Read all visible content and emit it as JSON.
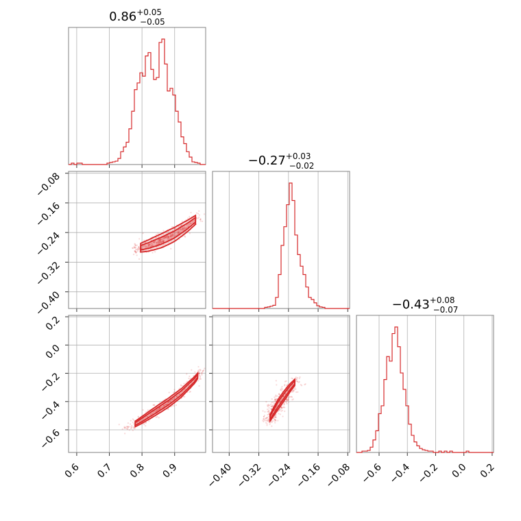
{
  "chart_data": {
    "type": "corner",
    "color": "#d62728",
    "parameters": [
      {
        "median": "0.86",
        "plus": "+0.05",
        "minus": "−0.05",
        "range": [
          0.575,
          0.995
        ],
        "ticks": [
          0.6,
          0.7,
          0.8,
          0.9
        ],
        "tick_labels": [
          "0.6",
          "0.7",
          "0.8",
          "0.9"
        ]
      },
      {
        "median": "−0.27",
        "plus": "+0.03",
        "minus": "−0.02",
        "range": [
          -0.445,
          -0.075
        ],
        "ticks": [
          -0.4,
          -0.32,
          -0.24,
          -0.16,
          -0.08
        ],
        "tick_labels": [
          "−0.40",
          "−0.32",
          "−0.24",
          "−0.16",
          "−0.08"
        ]
      },
      {
        "median": "−0.43",
        "plus": "+0.08",
        "minus": "−0.07",
        "range": [
          -0.76,
          0.21
        ],
        "ticks": [
          -0.6,
          -0.4,
          -0.2,
          0.0,
          0.2
        ],
        "tick_labels": [
          "−0.6",
          "−0.4",
          "−0.2",
          "0.0",
          "0.2"
        ]
      }
    ],
    "histograms": [
      {
        "param": 0,
        "bin_start": 0.575,
        "bin_width": 0.0084,
        "counts": [
          0,
          1,
          0,
          1,
          1,
          0,
          0,
          0,
          0,
          0,
          0,
          0,
          0,
          0,
          1,
          2,
          3,
          4,
          8,
          18,
          25,
          32,
          52,
          78,
          110,
          120,
          135,
          130,
          160,
          165,
          140,
          125,
          128,
          180,
          185,
          148,
          108,
          112,
          102,
          78,
          62,
          40,
          30,
          18,
          10,
          3,
          2,
          1,
          0,
          0
        ]
      },
      {
        "param": 1,
        "bin_start": -0.445,
        "bin_width": 0.0074,
        "counts": [
          0,
          0,
          0,
          0,
          0,
          0,
          0,
          0,
          0,
          0,
          0,
          0,
          0,
          0,
          0,
          0,
          0,
          0,
          0,
          1,
          2,
          4,
          6,
          25,
          80,
          150,
          195,
          248,
          300,
          258,
          175,
          128,
          100,
          80,
          50,
          25,
          20,
          12,
          5,
          2,
          1,
          0,
          0,
          0,
          0,
          0,
          0,
          0,
          0,
          0
        ]
      },
      {
        "param": 2,
        "bin_start": -0.76,
        "bin_width": 0.0194,
        "counts": [
          0,
          0,
          1,
          1,
          2,
          7,
          18,
          32,
          58,
          70,
          110,
          145,
          138,
          180,
          190,
          160,
          120,
          95,
          70,
          42,
          25,
          15,
          9,
          5,
          3,
          2,
          1,
          1,
          0,
          0,
          1,
          0,
          1,
          0,
          1,
          0,
          0,
          0,
          0,
          0,
          1,
          0,
          0,
          0,
          0,
          0,
          0,
          0,
          0,
          0
        ]
      }
    ],
    "pairs": [
      {
        "x_param": 0,
        "y_param": 1,
        "ridge_x": [
          0.78,
          0.82,
          0.86,
          0.9,
          0.94,
          0.98
        ],
        "ridge_y": [
          -0.285,
          -0.275,
          -0.262,
          -0.245,
          -0.222,
          -0.195
        ],
        "width": 0.012
      },
      {
        "x_param": 0,
        "y_param": 2,
        "ridge_x": [
          0.76,
          0.8,
          0.84,
          0.88,
          0.92,
          0.96,
          0.98
        ],
        "ridge_y": [
          -0.585,
          -0.53,
          -0.47,
          -0.41,
          -0.34,
          -0.25,
          -0.19
        ],
        "width": 0.02
      },
      {
        "x_param": 1,
        "y_param": 2,
        "ridge_x": [
          -0.295,
          -0.282,
          -0.268,
          -0.252,
          -0.235,
          -0.215
        ],
        "ridge_y": [
          -0.54,
          -0.48,
          -0.42,
          -0.36,
          -0.3,
          -0.24
        ],
        "width": 0.022
      }
    ]
  }
}
